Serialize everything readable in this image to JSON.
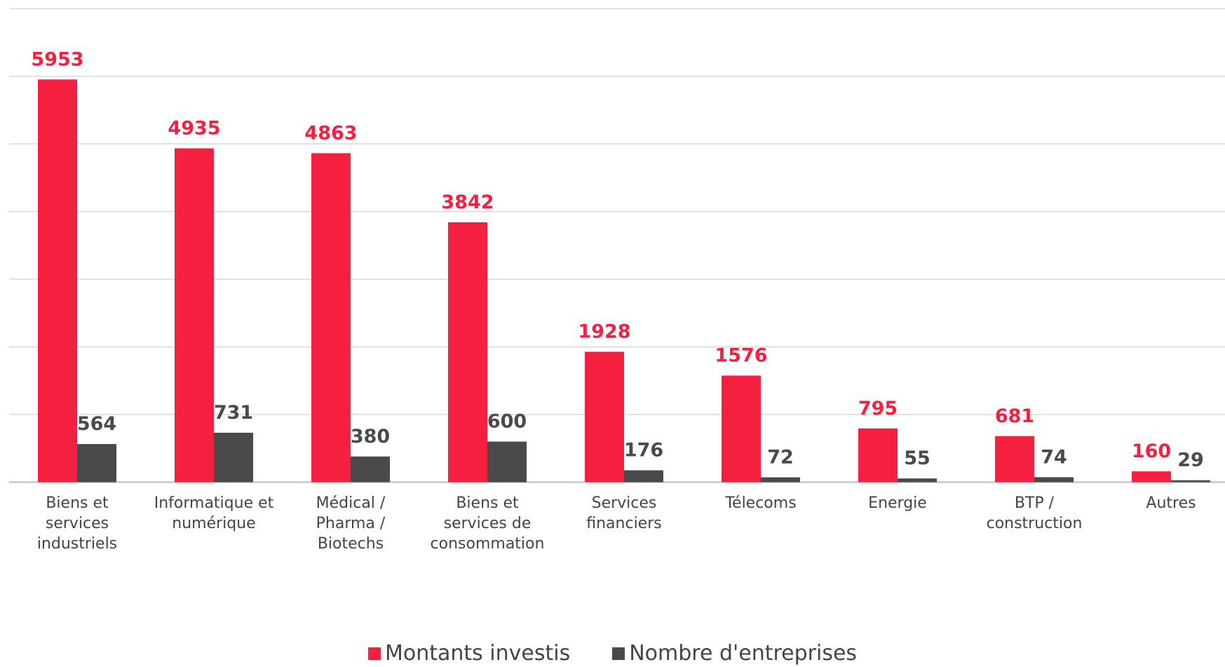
{
  "chart_data": {
    "type": "bar",
    "categories": [
      "Biens et\nservices\nindustriels",
      "Informatique et\nnumérique",
      "Médical /\nPharma /\nBiotechs",
      "Biens et\nservices de\nconsommation",
      "Services\nfinanciers",
      "Télecoms",
      "Energie",
      "BTP /\nconstruction",
      "Autres"
    ],
    "series": [
      {
        "name": "Montants investis",
        "color": "#f5203f",
        "values": [
          5953,
          4935,
          4863,
          3842,
          1928,
          1576,
          795,
          681,
          160
        ]
      },
      {
        "name": "Nombre d'entreprises",
        "color": "#4a4a4c",
        "values": [
          564,
          731,
          380,
          600,
          176,
          72,
          55,
          74,
          29
        ]
      }
    ],
    "ylim": [
      0,
      7000
    ],
    "yticks": [
      0,
      1000,
      2000,
      3000,
      4000,
      5000,
      6000,
      7000
    ],
    "grid": true,
    "legend": "bottom"
  }
}
